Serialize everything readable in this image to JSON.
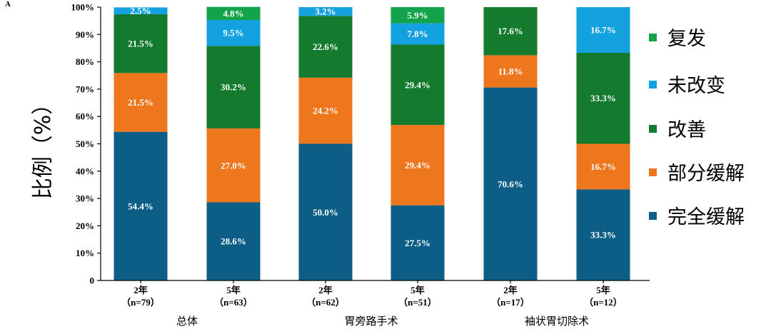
{
  "panel_label": "A",
  "chart_data": {
    "type": "bar",
    "stacked": true,
    "ylabel": "比例（%）",
    "ylim": [
      0,
      100
    ],
    "yticks": [
      "0",
      "10%",
      "20%",
      "30%",
      "40%",
      "50%",
      "60%",
      "70%",
      "80%",
      "90%",
      "100%"
    ],
    "categories": [
      {
        "year": "2年",
        "n": "（n=79）",
        "group": "总体"
      },
      {
        "year": "5年",
        "n": "（n=63）",
        "group": "总体"
      },
      {
        "year": "2年",
        "n": "（n=62）",
        "group": "胃旁路手术"
      },
      {
        "year": "5年",
        "n": "（n=51）",
        "group": "胃旁路手术"
      },
      {
        "year": "2年",
        "n": "（n=17）",
        "group": "袖状胃切除术"
      },
      {
        "year": "5年",
        "n": "（n=12）",
        "group": "袖状胃切除术"
      }
    ],
    "groups": [
      "总体",
      "胃旁路手术",
      "袖状胃切除术"
    ],
    "series": [
      {
        "name": "完全缓解",
        "color": "#0c5e87",
        "values": [
          54.4,
          28.6,
          50.0,
          27.5,
          70.6,
          33.3
        ],
        "labels": [
          "54.4%",
          "28.6%",
          "50.0%",
          "27.5%",
          "70.6%",
          "33.3%"
        ]
      },
      {
        "name": "部分缓解",
        "color": "#ee761c",
        "values": [
          21.5,
          27.0,
          24.2,
          29.4,
          11.8,
          16.7
        ],
        "labels": [
          "21.5%",
          "27.0%",
          "24.2%",
          "29.4%",
          "11.8%",
          "16.7%"
        ]
      },
      {
        "name": "改善",
        "color": "#137a2e",
        "values": [
          21.5,
          30.2,
          22.6,
          29.4,
          17.6,
          33.3
        ],
        "labels": [
          "21.5%",
          "30.2%",
          "22.6%",
          "29.4%",
          "17.6%",
          "33.3%"
        ]
      },
      {
        "name": "未改变",
        "color": "#14a1df",
        "values": [
          2.5,
          9.5,
          3.2,
          7.8,
          0,
          16.7
        ],
        "labels": [
          "2.5%",
          "9.5%",
          "3.2%",
          "7.8%",
          "",
          "16.7%"
        ]
      },
      {
        "name": "复发",
        "color": "#13a34a",
        "values": [
          0,
          4.8,
          0,
          5.9,
          0,
          0
        ],
        "labels": [
          "",
          "4.8%",
          "",
          "5.9%",
          "",
          ""
        ]
      }
    ],
    "legend_order": [
      "复发",
      "未改变",
      "改善",
      "部分缓解",
      "完全缓解"
    ],
    "legend_position": "right",
    "grid": false
  }
}
